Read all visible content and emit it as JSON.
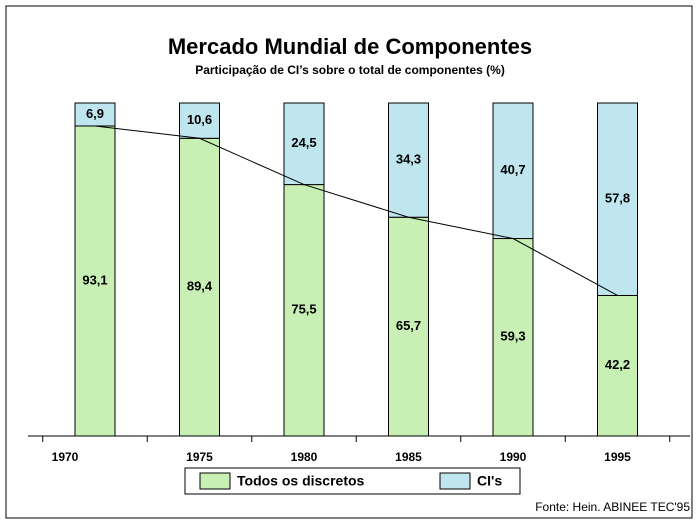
{
  "chart_data": {
    "type": "stacked_bar",
    "title": "Mercado Mundial de Componentes",
    "subtitle": "Participação de CI’s sobre o total de componentes (%)",
    "categories": [
      "1970",
      "1975",
      "1980",
      "1985",
      "1990",
      "1995"
    ],
    "series": [
      {
        "name": "Todos os discretos",
        "color": "#c8f0b4",
        "values": [
          93.1,
          89.4,
          75.5,
          65.7,
          59.3,
          42.2
        ],
        "value_labels": [
          "93,1",
          "89,4",
          "75,5",
          "65,7",
          "59,3",
          "42,2"
        ]
      },
      {
        "name": "CI's",
        "color": "#bfe6ef",
        "values": [
          6.9,
          10.6,
          24.5,
          34.3,
          40.7,
          57.8
        ],
        "value_labels": [
          "6,9",
          "10,6",
          "24,5",
          "34,3",
          "40,7",
          "57,8"
        ]
      }
    ],
    "ylim": [
      0,
      100
    ],
    "source": "Fonte: Hein. ABINEE TEC'95"
  }
}
